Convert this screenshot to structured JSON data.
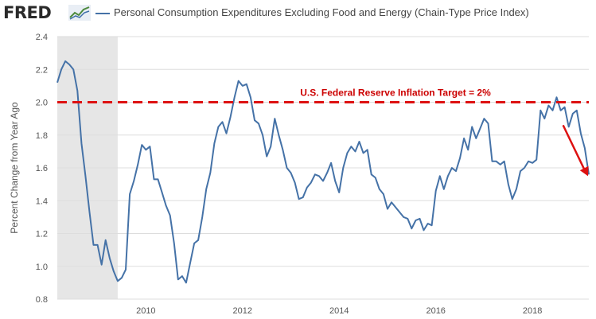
{
  "header": {
    "logo_text": "FRED",
    "title": "Personal Consumption Expenditures Excluding Food and Energy (Chain-Type Price Index)"
  },
  "colors": {
    "series": "#4572a7",
    "target": "#dd1111",
    "recession": "#e6e6e6",
    "grid": "#dddddd"
  },
  "chart_data": {
    "type": "line",
    "title": "Personal Consumption Expenditures Excluding Food and Energy (Chain-Type Price Index)",
    "ylabel": "Percent Change from Year Ago",
    "xlabel": "",
    "ylim": [
      0.8,
      2.4
    ],
    "xlim": [
      "2008-03",
      "2019-03"
    ],
    "y_ticks": [
      "0.8",
      "1.0",
      "1.2",
      "1.4",
      "1.6",
      "1.8",
      "2.0",
      "2.2",
      "2.4"
    ],
    "x_ticks": [
      "2010",
      "2012",
      "2014",
      "2016",
      "2018"
    ],
    "grid": true,
    "recession": [
      "2008-03",
      "2009-06"
    ],
    "annotation": {
      "label": "U.S. Federal Reserve Inflation Target = 2%",
      "value": 2.0
    },
    "series": [
      {
        "x": [
          "2008-03",
          "2008-04",
          "2008-05",
          "2008-06",
          "2008-07",
          "2008-08",
          "2008-09",
          "2008-10",
          "2008-11",
          "2008-12",
          "2009-01",
          "2009-02",
          "2009-03",
          "2009-04",
          "2009-05",
          "2009-06",
          "2009-07",
          "2009-08",
          "2009-09",
          "2009-10",
          "2009-11",
          "2009-12",
          "2010-01",
          "2010-02",
          "2010-03",
          "2010-04",
          "2010-05",
          "2010-06",
          "2010-07",
          "2010-08",
          "2010-09",
          "2010-10",
          "2010-11",
          "2010-12",
          "2011-01",
          "2011-02",
          "2011-03",
          "2011-04",
          "2011-05",
          "2011-06",
          "2011-07",
          "2011-08",
          "2011-09",
          "2011-10",
          "2011-11",
          "2011-12",
          "2012-01",
          "2012-02",
          "2012-03",
          "2012-04",
          "2012-05",
          "2012-06",
          "2012-07",
          "2012-08",
          "2012-09",
          "2012-10",
          "2012-11",
          "2012-12",
          "2013-01",
          "2013-02",
          "2013-03",
          "2013-04",
          "2013-05",
          "2013-06",
          "2013-07",
          "2013-08",
          "2013-09",
          "2013-10",
          "2013-11",
          "2013-12",
          "2014-01",
          "2014-02",
          "2014-03",
          "2014-04",
          "2014-05",
          "2014-06",
          "2014-07",
          "2014-08",
          "2014-09",
          "2014-10",
          "2014-11",
          "2014-12",
          "2015-01",
          "2015-02",
          "2015-03",
          "2015-04",
          "2015-05",
          "2015-06",
          "2015-07",
          "2015-08",
          "2015-09",
          "2015-10",
          "2015-11",
          "2015-12",
          "2016-01",
          "2016-02",
          "2016-03",
          "2016-04",
          "2016-05",
          "2016-06",
          "2016-07",
          "2016-08",
          "2016-09",
          "2016-10",
          "2016-11",
          "2016-12",
          "2017-01",
          "2017-02",
          "2017-03",
          "2017-04",
          "2017-05",
          "2017-06",
          "2017-07",
          "2017-08",
          "2017-09",
          "2017-10",
          "2017-11",
          "2017-12",
          "2018-01",
          "2018-02",
          "2018-03",
          "2018-04",
          "2018-05",
          "2018-06",
          "2018-07",
          "2018-08",
          "2018-09",
          "2018-10",
          "2018-11",
          "2018-12",
          "2019-01",
          "2019-02",
          "2019-03"
        ],
        "y": [
          2.12,
          2.2,
          2.25,
          2.23,
          2.2,
          2.07,
          1.75,
          1.55,
          1.33,
          1.13,
          1.13,
          1.01,
          1.16,
          1.05,
          0.97,
          0.91,
          0.93,
          0.98,
          1.44,
          1.52,
          1.62,
          1.74,
          1.71,
          1.73,
          1.53,
          1.53,
          1.45,
          1.37,
          1.31,
          1.14,
          0.92,
          0.94,
          0.9,
          1.02,
          1.14,
          1.16,
          1.3,
          1.47,
          1.57,
          1.75,
          1.85,
          1.88,
          1.81,
          1.91,
          2.03,
          2.13,
          2.1,
          2.11,
          2.03,
          1.89,
          1.87,
          1.8,
          1.67,
          1.73,
          1.9,
          1.8,
          1.71,
          1.6,
          1.57,
          1.51,
          1.41,
          1.42,
          1.48,
          1.51,
          1.56,
          1.55,
          1.52,
          1.57,
          1.63,
          1.52,
          1.45,
          1.6,
          1.69,
          1.73,
          1.7,
          1.76,
          1.69,
          1.71,
          1.56,
          1.54,
          1.47,
          1.44,
          1.35,
          1.39,
          1.36,
          1.33,
          1.3,
          1.29,
          1.23,
          1.28,
          1.29,
          1.22,
          1.26,
          1.25,
          1.46,
          1.55,
          1.47,
          1.55,
          1.6,
          1.58,
          1.66,
          1.78,
          1.71,
          1.85,
          1.78,
          1.84,
          1.9,
          1.87,
          1.64,
          1.64,
          1.62,
          1.64,
          1.5,
          1.41,
          1.47,
          1.58,
          1.6,
          1.64,
          1.63,
          1.65,
          1.95,
          1.9,
          1.98,
          1.95,
          2.03,
          1.95,
          1.97,
          1.85,
          1.93,
          1.95,
          1.81,
          1.72,
          1.56
        ]
      }
    ]
  }
}
